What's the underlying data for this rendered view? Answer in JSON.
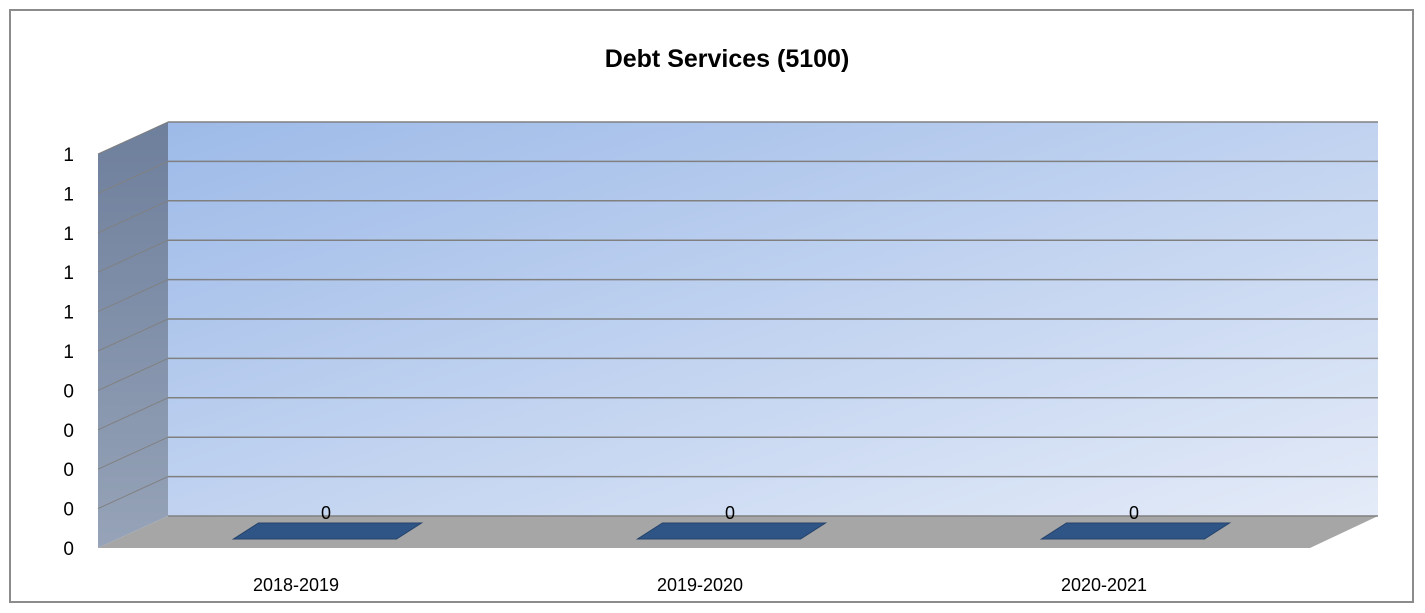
{
  "chart_data": {
    "type": "bar",
    "title": "Debt Services (5100)",
    "categories": [
      "2018-2019",
      "2019-2020",
      "2020-2021"
    ],
    "values": [
      0,
      0,
      0
    ],
    "data_labels": [
      "0",
      "0",
      "0"
    ],
    "y_tick_labels": [
      "0",
      "0",
      "0",
      "0",
      "0",
      "1",
      "1",
      "1",
      "1",
      "1",
      "1"
    ],
    "grid": true,
    "three_d": true,
    "legend": "none",
    "colors": {
      "bar": "#2F5486",
      "wall_top": "#9DBAE8",
      "wall_bottom": "#E4EBF8",
      "side_wall": "#7A8AA4",
      "floor": "#A6A6A6",
      "gridline": "#808080"
    }
  }
}
